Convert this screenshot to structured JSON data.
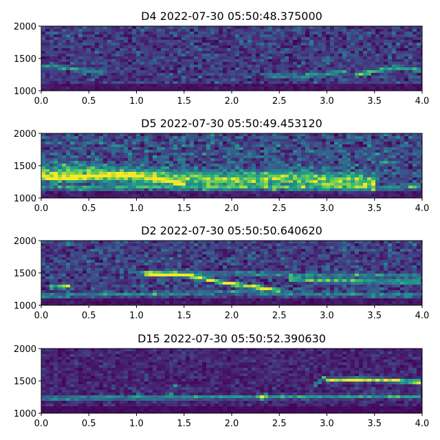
{
  "figure": {
    "background": "#ffffff",
    "colormap": "viridis",
    "colormap_stops": [
      "#440154",
      "#46337e",
      "#365c8d",
      "#277f8e",
      "#1fa187",
      "#4ac16d",
      "#a0da39",
      "#fde725"
    ]
  },
  "chart_data": [
    {
      "type": "heatmap",
      "title": "D4 2022-07-30 05:50:48.375000",
      "xlim": [
        0.0,
        4.0
      ],
      "ylim": [
        1000,
        2000
      ],
      "xticks": [
        "0.0",
        "0.5",
        "1.0",
        "1.5",
        "2.0",
        "2.5",
        "3.0",
        "3.5",
        "4.0"
      ],
      "yticks": [
        "1000",
        "1500",
        "2000"
      ],
      "grid": false,
      "noise": 0.2,
      "traces": [
        {
          "x": [
            0.0,
            0.3,
            0.7
          ],
          "y": [
            1380,
            1350,
            1280
          ],
          "strength": 0.35
        },
        {
          "x": [
            2.4,
            2.8,
            3.2
          ],
          "y": [
            1230,
            1230,
            1300
          ],
          "strength": 0.4
        },
        {
          "x": [
            3.3,
            3.7,
            4.0
          ],
          "y": [
            1240,
            1360,
            1320
          ],
          "strength": 0.5
        }
      ]
    },
    {
      "type": "heatmap",
      "title": "D5 2022-07-30 05:50:49.453120",
      "xlim": [
        0.0,
        4.0
      ],
      "ylim": [
        1000,
        2000
      ],
      "xticks": [
        "0.0",
        "0.5",
        "1.0",
        "1.5",
        "2.0",
        "2.5",
        "3.0",
        "3.5",
        "4.0"
      ],
      "yticks": [
        "1000",
        "1500",
        "2000"
      ],
      "grid": false,
      "noise": 0.28,
      "traces": [
        {
          "x": [
            0.0,
            0.5,
            1.0,
            1.5,
            2.0,
            2.5,
            3.0,
            3.5
          ],
          "y": [
            1390,
            1370,
            1340,
            1300,
            1280,
            1300,
            1280,
            1240
          ],
          "strength": 0.55,
          "width": 120
        },
        {
          "x": [
            0.0,
            0.3,
            0.9,
            1.5
          ],
          "y": [
            1320,
            1310,
            1370,
            1220
          ],
          "strength": 0.7
        },
        {
          "x": [
            0.0,
            1.0,
            2.0,
            3.0,
            4.0
          ],
          "y": [
            1160,
            1160,
            1160,
            1160,
            1160
          ],
          "strength": 0.3
        }
      ]
    },
    {
      "type": "heatmap",
      "title": "D2 2022-07-30 05:50:50.640620",
      "xlim": [
        0.0,
        4.0
      ],
      "ylim": [
        1000,
        2000
      ],
      "xticks": [
        "0.0",
        "0.5",
        "1.0",
        "1.5",
        "2.0",
        "2.5",
        "3.0",
        "3.5",
        "4.0"
      ],
      "yticks": [
        "1000",
        "1500",
        "2000"
      ],
      "grid": false,
      "noise": 0.22,
      "traces": [
        {
          "x": [
            0.1,
            0.3
          ],
          "y": [
            1280,
            1300
          ],
          "strength": 0.55
        },
        {
          "x": [
            1.1,
            1.5,
            2.0,
            2.5
          ],
          "y": [
            1490,
            1470,
            1330,
            1230
          ],
          "strength": 0.85
        },
        {
          "x": [
            1.0,
            2.0,
            3.0,
            4.0
          ],
          "y": [
            1490,
            1490,
            1460,
            1450
          ],
          "strength": 0.3
        },
        {
          "x": [
            2.6,
            3.0,
            3.4,
            4.0
          ],
          "y": [
            1410,
            1380,
            1370,
            1360
          ],
          "strength": 0.55
        },
        {
          "x": [
            0.0,
            1.0,
            2.0,
            3.0,
            4.0
          ],
          "y": [
            1150,
            1170,
            1200,
            1170,
            1150
          ],
          "strength": 0.3
        }
      ]
    },
    {
      "type": "heatmap",
      "title": "D15 2022-07-30 05:50:52.390630",
      "xlim": [
        0.0,
        4.0
      ],
      "ylim": [
        1000,
        2000
      ],
      "xticks": [
        "0.0",
        "0.5",
        "1.0",
        "1.5",
        "2.0",
        "2.5",
        "3.0",
        "3.5",
        "4.0"
      ],
      "yticks": [
        "1000",
        "1500",
        "2000"
      ],
      "grid": false,
      "noise": 0.12,
      "traces": [
        {
          "x": [
            0.0,
            4.0
          ],
          "y": [
            1230,
            1260
          ],
          "strength": 0.45
        },
        {
          "x": [
            3.0,
            3.3,
            3.6,
            4.0
          ],
          "y": [
            1510,
            1520,
            1510,
            1480
          ],
          "strength": 0.95
        },
        {
          "x": [
            2.85,
            3.0
          ],
          "y": [
            1400,
            1590
          ],
          "strength": 0.5
        },
        {
          "x": [
            2.3,
            2.4
          ],
          "y": [
            1220,
            1310
          ],
          "strength": 0.5
        },
        {
          "x": [
            1.0,
            1.05
          ],
          "y": [
            1200,
            1400
          ],
          "strength": 0.4
        },
        {
          "x": [
            1.35,
            1.45
          ],
          "y": [
            1250,
            1550
          ],
          "strength": 0.4
        },
        {
          "x": [
            3.48,
            3.5
          ],
          "y": [
            1000,
            1950
          ],
          "strength": 0.35
        }
      ]
    }
  ]
}
